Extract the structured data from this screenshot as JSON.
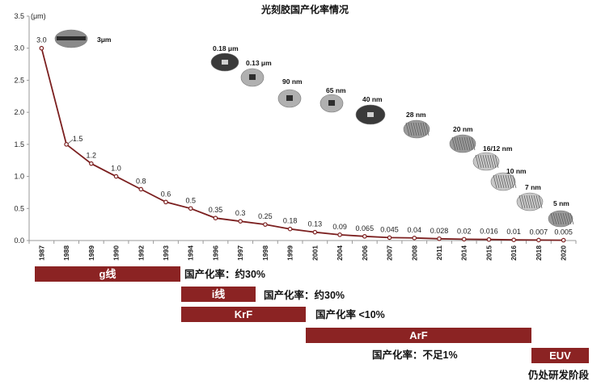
{
  "chart_data": {
    "type": "line",
    "title": "光刻胶国产化率情况",
    "ylabel": "(μm)",
    "ylim": [
      0,
      3.5
    ],
    "yticks": [
      "0.0",
      "0.5",
      "1.0",
      "1.5",
      "2.0",
      "2.5",
      "3.0",
      "3.5"
    ],
    "categories": [
      "1987",
      "1988",
      "1989",
      "1990",
      "1992",
      "1993",
      "1994",
      "1996",
      "1997",
      "1998",
      "1999",
      "2001",
      "2004",
      "2006",
      "2007",
      "2008",
      "2011",
      "2014",
      "2015",
      "2016",
      "2018",
      "2020"
    ],
    "values": [
      3.0,
      1.5,
      1.2,
      1.0,
      0.8,
      0.6,
      0.5,
      0.35,
      0.3,
      0.25,
      0.18,
      0.13,
      0.09,
      0.065,
      0.045,
      0.04,
      0.028,
      0.02,
      0.016,
      0.01,
      0.007,
      0.005
    ],
    "value_labels": [
      "3.0",
      "1.5",
      "1.2",
      "1.0",
      "0.8",
      "0.6",
      "0.5",
      "0.35",
      "0.3",
      "0.25",
      "0.18",
      "0.13",
      "0.09",
      "0.065",
      "0.045",
      "0.04",
      "0.028",
      "0.02",
      "0.016",
      "0.01",
      "0.007",
      "0.005"
    ],
    "node_labels": [
      "3μm",
      "0.18 μm",
      "0.13 μm",
      "90 nm",
      "65 nm",
      "40 nm",
      "28 nm",
      "20 nm",
      "16/12 nm",
      "10 nm",
      "7 nm",
      "5 nm"
    ],
    "line_color": "#7b1f1f",
    "bar_color": "#8b2323"
  },
  "phases": [
    {
      "name": "g线",
      "rate": "国产化率：约30%"
    },
    {
      "name": "i线",
      "rate": "国产化率：约30%"
    },
    {
      "name": "KrF",
      "rate": "国产化率 <10%"
    },
    {
      "name": "ArF",
      "rate": "国产化率：不足1%"
    },
    {
      "name": "EUV",
      "rate": "仍处研发阶段"
    }
  ]
}
